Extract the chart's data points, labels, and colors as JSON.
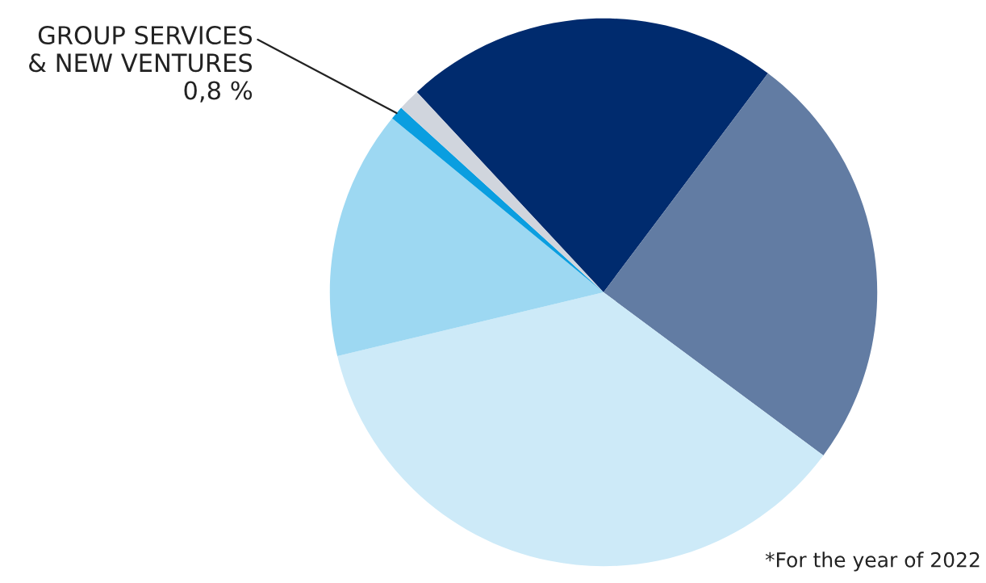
{
  "chart_data": {
    "type": "pie",
    "categories": [
      null,
      null,
      null,
      null,
      "GROUP SERVICES & NEW VENTURES",
      null
    ],
    "values": [
      22.2,
      24.9,
      36.1,
      14.7,
      0.8,
      1.3
    ],
    "colors": [
      "#002b6e",
      "#627ca3",
      "#cdeaf8",
      "#9dd8f2",
      "#0a9ee0",
      "#d0d5dd"
    ],
    "value_labels": [
      null,
      null,
      null,
      null,
      "0,8 %",
      null
    ],
    "annotations": [
      "*For the year of 2022"
    ]
  }
}
